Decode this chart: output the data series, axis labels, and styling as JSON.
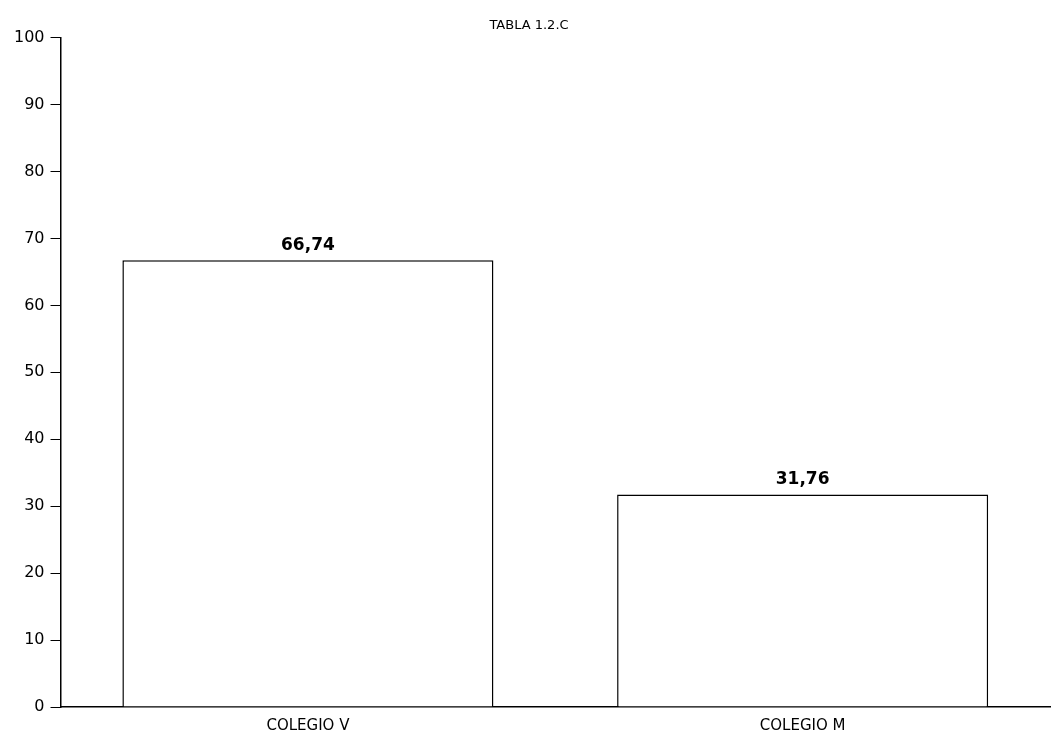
{
  "chart_data": {
    "type": "bar",
    "title": "TABLA 1.2.C",
    "categories": [
      "COLEGIO V",
      "COLEGIO M"
    ],
    "values": [
      66.74,
      31.76
    ],
    "color": "#ffffff",
    "value_labels": [
      "66,74",
      "31,76"
    ],
    "ylim": [
      0,
      100
    ],
    "yticks": [
      0,
      10,
      20,
      30,
      40,
      50,
      60,
      70,
      80,
      90,
      100
    ],
    "grid": false,
    "legend": false
  }
}
